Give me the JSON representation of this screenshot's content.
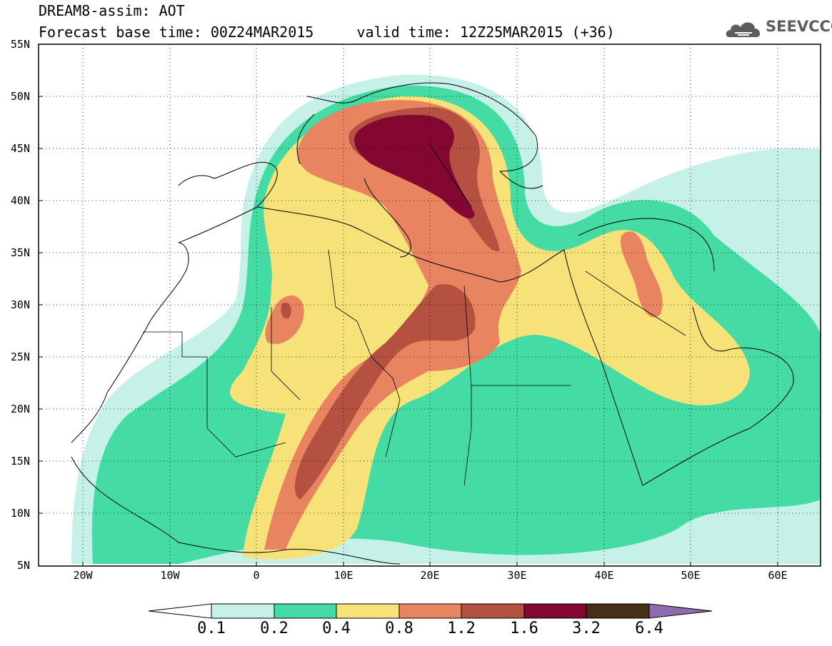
{
  "header": {
    "title_line1": "DREAM8-assim: AOT",
    "title_line2": "Forecast base time: 00Z24MAR2015     valid time: 12Z25MAR2015 (+36)"
  },
  "logo": {
    "text": "SEEVCCC",
    "icon": "cloud-icon"
  },
  "map": {
    "lat_labels": [
      "55N",
      "50N",
      "45N",
      "40N",
      "35N",
      "30N",
      "25N",
      "20N",
      "15N",
      "10N",
      "5N"
    ],
    "lon_labels": [
      "20W",
      "10W",
      "0",
      "10E",
      "20E",
      "30E",
      "40E",
      "50E",
      "60E"
    ],
    "lat_values": [
      55,
      50,
      45,
      40,
      35,
      30,
      25,
      20,
      15,
      10,
      5
    ],
    "lon_values": [
      -20,
      -10,
      0,
      10,
      20,
      30,
      40,
      50,
      60
    ],
    "lon_range": [
      -25,
      65
    ],
    "lat_range": [
      5,
      55
    ],
    "grid": "dotted"
  },
  "colorbar": {
    "labels": [
      "0.1",
      "0.2",
      "0.4",
      "0.8",
      "1.2",
      "1.6",
      "3.2",
      "6.4"
    ],
    "colors": [
      "#ffffff",
      "#c6f1e9",
      "#44dca4",
      "#f7e27a",
      "#e8845f",
      "#b45140",
      "#840731",
      "#472e19",
      "#8e6bb1"
    ]
  }
}
